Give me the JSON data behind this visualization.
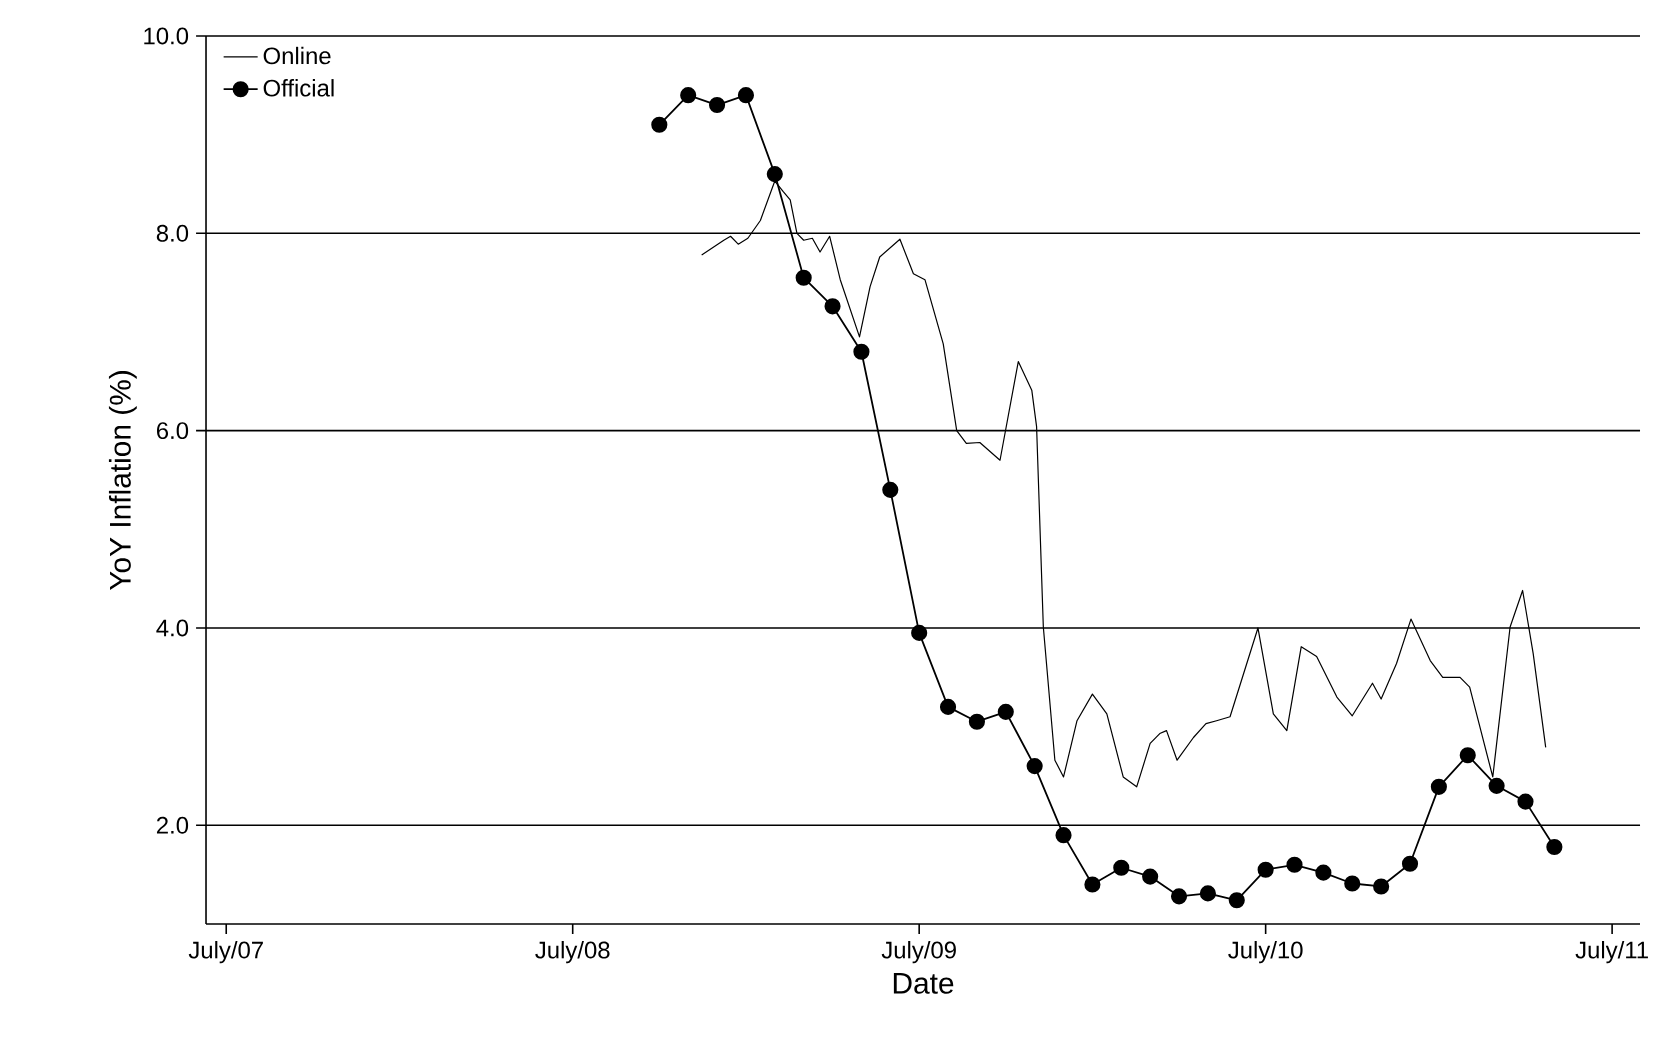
{
  "chart_data": {
    "type": "line",
    "xlabel": "Date",
    "ylabel": "YoY Inflation (%)",
    "xlim": [
      "2007-06-10",
      "2011-07-30"
    ],
    "ylim": [
      1.0,
      10.0
    ],
    "xticks": [
      {
        "value": "2007-07",
        "label": "July/07"
      },
      {
        "value": "2008-07",
        "label": "July/08"
      },
      {
        "value": "2009-07",
        "label": "July/09"
      },
      {
        "value": "2010-07",
        "label": "July/10"
      },
      {
        "value": "2011-07",
        "label": "July/11"
      }
    ],
    "yticks": [
      {
        "value": 2,
        "label": "2.0"
      },
      {
        "value": 4,
        "label": "4.0"
      },
      {
        "value": 6,
        "label": "6.0"
      },
      {
        "value": 8,
        "label": "8.0"
      },
      {
        "value": 10,
        "label": "10.0"
      }
    ],
    "grid": "y",
    "legend": "top left",
    "line_style": "solid",
    "series": [
      {
        "name": "Online",
        "color": "#000000",
        "marker": "none",
        "x": [
          "2008-11-15",
          "2008-12-08",
          "2008-12-15",
          "2008-12-23",
          "2009-01-03",
          "2009-01-16",
          "2009-02-01",
          "2009-02-10",
          "2009-02-17",
          "2009-02-24",
          "2009-03-01",
          "2009-03-10",
          "2009-03-18",
          "2009-03-28",
          "2009-04-09",
          "2009-04-29",
          "2009-05-10",
          "2009-05-20",
          "2009-06-11",
          "2009-06-25",
          "2009-07-07",
          "2009-07-26",
          "2009-08-10",
          "2009-08-20",
          "2009-09-04",
          "2009-09-25",
          "2009-10-14",
          "2009-10-28",
          "2009-11-03",
          "2009-11-10",
          "2009-11-22",
          "2009-12-01",
          "2009-12-15",
          "2010-01-01",
          "2010-01-16",
          "2010-02-03",
          "2010-02-17",
          "2010-03-01",
          "2010-03-11",
          "2010-03-18",
          "2010-03-29",
          "2010-04-16",
          "2010-04-29",
          "2010-05-10",
          "2010-05-24",
          "2010-06-23",
          "2010-07-09",
          "2010-07-23",
          "2010-08-08",
          "2010-08-24",
          "2010-09-15",
          "2010-10-01",
          "2010-10-22",
          "2010-11-01",
          "2010-11-17",
          "2010-12-02",
          "2010-12-22",
          "2011-01-05",
          "2011-01-23",
          "2011-02-03",
          "2011-02-27",
          "2011-03-15",
          "2011-03-28",
          "2011-04-09",
          "2011-04-22"
        ],
        "values": [
          7.78,
          7.93,
          7.97,
          7.89,
          7.95,
          8.13,
          8.53,
          8.42,
          8.34,
          8.0,
          7.93,
          7.95,
          7.81,
          7.97,
          7.53,
          6.95,
          7.46,
          7.76,
          7.94,
          7.59,
          7.53,
          6.88,
          6.0,
          5.87,
          5.88,
          5.7,
          6.7,
          6.41,
          6.04,
          4.01,
          2.66,
          2.49,
          3.06,
          3.33,
          3.13,
          2.49,
          2.39,
          2.83,
          2.93,
          2.96,
          2.66,
          2.89,
          3.03,
          3.06,
          3.1,
          4.0,
          3.13,
          2.96,
          3.81,
          3.71,
          3.3,
          3.11,
          3.44,
          3.28,
          3.64,
          4.09,
          3.67,
          3.5,
          3.5,
          3.4,
          2.49,
          4.01,
          4.38,
          3.74,
          2.79
        ]
      },
      {
        "name": "Official",
        "color": "#000000",
        "marker": "circle",
        "x": [
          "2008-10",
          "2008-11",
          "2008-12",
          "2009-01",
          "2009-02",
          "2009-03",
          "2009-04",
          "2009-05",
          "2009-06",
          "2009-07",
          "2009-08",
          "2009-09",
          "2009-10",
          "2009-11",
          "2009-12",
          "2010-01",
          "2010-02",
          "2010-03",
          "2010-04",
          "2010-05",
          "2010-06",
          "2010-07",
          "2010-08",
          "2010-09",
          "2010-10",
          "2010-11",
          "2010-12",
          "2011-01",
          "2011-02",
          "2011-03",
          "2011-04",
          "2011-05"
        ],
        "values": [
          9.1,
          9.4,
          9.3,
          9.4,
          8.6,
          7.55,
          7.26,
          6.8,
          5.4,
          3.95,
          3.2,
          3.05,
          3.15,
          2.6,
          1.9,
          1.4,
          1.57,
          1.48,
          1.28,
          1.31,
          1.24,
          1.55,
          1.6,
          1.52,
          1.41,
          1.38,
          1.61,
          2.39,
          2.71,
          2.4,
          2.24,
          1.78
        ]
      }
    ]
  }
}
